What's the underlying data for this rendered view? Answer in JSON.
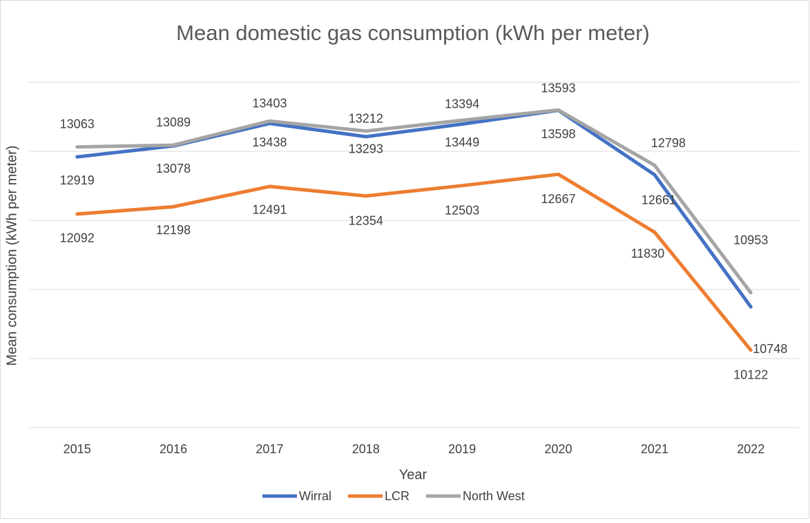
{
  "chart_data": {
    "type": "line",
    "title": "Mean domestic gas consumption (kWh per meter)",
    "xlabel": "Year",
    "ylabel": "Mean consumption (kWh per meter)",
    "categories": [
      "2015",
      "2016",
      "2017",
      "2018",
      "2019",
      "2020",
      "2021",
      "2022"
    ],
    "series": [
      {
        "name": "Wirral",
        "color": "#4472c4",
        "values": [
          12919,
          13078,
          13403,
          13212,
          13394,
          13593,
          12661,
          10748
        ]
      },
      {
        "name": "LCR",
        "color": "#ed7d31",
        "values": [
          12092,
          12198,
          12491,
          12354,
          12503,
          12667,
          11830,
          10122
        ]
      },
      {
        "name": "North West",
        "color": "#a5a5a5",
        "values": [
          13063,
          13089,
          13438,
          13293,
          13449,
          13598,
          12798,
          10953
        ]
      }
    ],
    "ylim": [
      9000,
      14000
    ],
    "yticks": [
      9000,
      10000,
      11000,
      12000,
      13000,
      14000
    ],
    "grid": true,
    "legend": "bottom"
  }
}
